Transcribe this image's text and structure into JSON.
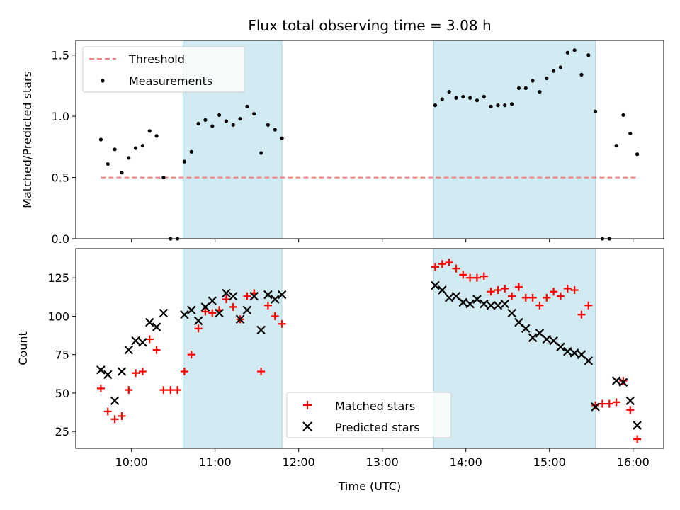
{
  "chart_data": [
    {
      "type": "scatter",
      "title": "Flux total observing time = 3.08 h",
      "xlabel": "",
      "ylabel": "Matched/Predicted stars",
      "xlim": [
        "09:20",
        "16:22"
      ],
      "ylim": [
        0,
        1.62
      ],
      "y_ticks": [
        "0.0",
        "0.5",
        "1.0",
        "1.5"
      ],
      "grid": false,
      "legend_position": "top-left",
      "shaded_regions": [
        [
          "10:37",
          "11:48"
        ],
        [
          "13:37",
          "15:33"
        ]
      ],
      "shade_color": "#add8e6",
      "series": [
        {
          "name": "Threshold",
          "style": "dashed-line",
          "color": "#f08080",
          "x": [
            "09:38",
            "16:04"
          ],
          "y": [
            0.5,
            0.5
          ]
        },
        {
          "name": "Measurements",
          "style": "points",
          "color": "#000000",
          "x": [
            "09:38",
            "09:43",
            "09:48",
            "09:53",
            "09:58",
            "10:03",
            "10:08",
            "10:13",
            "10:18",
            "10:23",
            "10:28",
            "10:33",
            "10:38",
            "10:43",
            "10:48",
            "10:53",
            "10:58",
            "11:03",
            "11:08",
            "11:13",
            "11:18",
            "11:23",
            "11:28",
            "11:33",
            "11:38",
            "11:43",
            "11:48",
            "13:38",
            "13:43",
            "13:48",
            "13:53",
            "13:58",
            "14:03",
            "14:08",
            "14:13",
            "14:18",
            "14:23",
            "14:28",
            "14:33",
            "14:38",
            "14:43",
            "14:48",
            "14:53",
            "14:58",
            "15:03",
            "15:08",
            "15:13",
            "15:18",
            "15:23",
            "15:28",
            "15:33",
            "15:38",
            "15:43",
            "15:48",
            "15:53",
            "15:58",
            "16:03"
          ],
          "y": [
            0.81,
            0.61,
            0.73,
            0.54,
            0.66,
            0.74,
            0.76,
            0.88,
            0.84,
            0.5,
            0.0,
            0.0,
            0.63,
            0.71,
            0.94,
            0.97,
            0.92,
            1.01,
            0.96,
            0.93,
            0.98,
            1.08,
            1.02,
            0.7,
            0.93,
            0.89,
            0.82,
            1.09,
            1.14,
            1.2,
            1.15,
            1.16,
            1.15,
            1.13,
            1.16,
            1.08,
            1.09,
            1.09,
            1.1,
            1.23,
            1.23,
            1.29,
            1.2,
            1.31,
            1.37,
            1.4,
            1.52,
            1.54,
            1.34,
            1.5,
            1.04,
            0.0,
            0.0,
            0.76,
            1.01,
            0.86,
            0.69
          ]
        }
      ]
    },
    {
      "type": "scatter",
      "title": "",
      "xlabel": "Time (UTC)",
      "ylabel": "Count",
      "x_ticks": [
        "10:00",
        "11:00",
        "12:00",
        "13:00",
        "14:00",
        "15:00",
        "16:00"
      ],
      "xlim": [
        "09:20",
        "16:22"
      ],
      "ylim": [
        14,
        144
      ],
      "y_ticks": [
        "25",
        "50",
        "75",
        "100",
        "125"
      ],
      "grid": false,
      "legend_position": "bottom-center",
      "shaded_regions": [
        [
          "10:37",
          "11:48"
        ],
        [
          "13:37",
          "15:33"
        ]
      ],
      "shade_color": "#add8e6",
      "series": [
        {
          "name": "Matched stars",
          "marker": "+",
          "color": "#ff0000",
          "x": [
            "09:38",
            "09:43",
            "09:48",
            "09:53",
            "09:58",
            "10:03",
            "10:08",
            "10:13",
            "10:18",
            "10:23",
            "10:28",
            "10:33",
            "10:38",
            "10:43",
            "10:48",
            "10:53",
            "10:58",
            "11:03",
            "11:08",
            "11:13",
            "11:18",
            "11:23",
            "11:28",
            "11:33",
            "11:38",
            "11:43",
            "11:48",
            "13:38",
            "13:43",
            "13:48",
            "13:53",
            "13:58",
            "14:03",
            "14:08",
            "14:13",
            "14:18",
            "14:23",
            "14:28",
            "14:33",
            "14:38",
            "14:43",
            "14:48",
            "14:53",
            "14:58",
            "15:03",
            "15:08",
            "15:13",
            "15:18",
            "15:23",
            "15:28",
            "15:33",
            "15:38",
            "15:43",
            "15:48",
            "15:53",
            "15:58",
            "16:03"
          ],
          "y": [
            53,
            38,
            33,
            35,
            52,
            63,
            64,
            85,
            78,
            52,
            52,
            52,
            64,
            75,
            92,
            103,
            102,
            104,
            111,
            106,
            98,
            113,
            115,
            64,
            107,
            100,
            95,
            132,
            134,
            135,
            131,
            127,
            125,
            125,
            126,
            116,
            117,
            118,
            113,
            119,
            112,
            112,
            107,
            112,
            116,
            113,
            118,
            117,
            101,
            107,
            42,
            43,
            43,
            44,
            58,
            39,
            20
          ]
        },
        {
          "name": "Predicted stars",
          "marker": "x",
          "color": "#000000",
          "x": [
            "09:38",
            "09:43",
            "09:48",
            "09:53",
            "09:58",
            "10:03",
            "10:08",
            "10:13",
            "10:18",
            "10:23",
            "10:38",
            "10:43",
            "10:48",
            "10:53",
            "10:58",
            "11:03",
            "11:08",
            "11:13",
            "11:18",
            "11:23",
            "11:28",
            "11:33",
            "11:38",
            "11:43",
            "11:48",
            "13:38",
            "13:43",
            "13:48",
            "13:53",
            "13:58",
            "14:03",
            "14:08",
            "14:13",
            "14:18",
            "14:23",
            "14:28",
            "14:33",
            "14:38",
            "14:43",
            "14:48",
            "14:53",
            "14:58",
            "15:03",
            "15:08",
            "15:13",
            "15:18",
            "15:23",
            "15:28",
            "15:33",
            "15:48",
            "15:53",
            "15:58",
            "16:03"
          ],
          "y": [
            65,
            62,
            45,
            64,
            78,
            84,
            83,
            96,
            93,
            102,
            101,
            104,
            97,
            106,
            110,
            102,
            115,
            113,
            98,
            104,
            113,
            91,
            114,
            111,
            114,
            120,
            117,
            112,
            113,
            109,
            108,
            111,
            108,
            107,
            107,
            108,
            102,
            96,
            92,
            86,
            89,
            85,
            84,
            80,
            77,
            76,
            75,
            71,
            41,
            58,
            57,
            45,
            29
          ]
        }
      ]
    }
  ]
}
